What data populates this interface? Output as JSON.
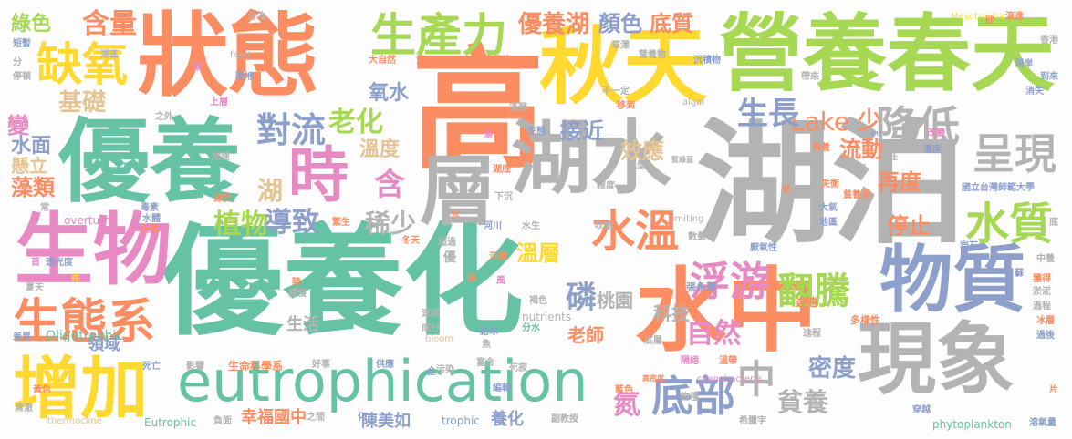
{
  "palette": {
    "teal": "#66c2a5",
    "orange": "#fc8d62",
    "blue": "#8da0cb",
    "pink": "#e78ac3",
    "green": "#a6d854",
    "yellow": "#ffd92f",
    "tan": "#e5c494",
    "gray": "#b3b3b3"
  },
  "words": [
    {
      "text": "湖泊",
      "color": "#b3b3b3",
      "orientation": "horizontal"
    },
    {
      "text": "優養化",
      "color": "#66c2a5",
      "orientation": "horizontal"
    },
    {
      "text": "高",
      "color": "#fc8d62",
      "orientation": "horizontal"
    },
    {
      "text": "狀態",
      "color": "#fc8d62",
      "orientation": "horizontal"
    },
    {
      "text": "營養春天",
      "color": "#a6d854",
      "orientation": "horizontal"
    },
    {
      "text": "秋天",
      "color": "#ffd92f",
      "orientation": "horizontal"
    },
    {
      "text": "優養",
      "color": "#66c2a5",
      "orientation": "horizontal"
    },
    {
      "text": "水中",
      "color": "#fc8d62",
      "orientation": "horizontal"
    },
    {
      "text": "湖水",
      "color": "#b3b3b3",
      "orientation": "horizontal"
    },
    {
      "text": "現象",
      "color": "#b3b3b3",
      "orientation": "horizontal"
    },
    {
      "text": "物質",
      "color": "#8da0cb",
      "orientation": "horizontal"
    },
    {
      "text": "生物",
      "color": "#e78ac3",
      "orientation": "horizontal"
    },
    {
      "text": "增加",
      "color": "#ffd92f",
      "orientation": "horizontal"
    },
    {
      "text": "eutrophication",
      "color": "#66c2a5",
      "orientation": "horizontal"
    },
    {
      "text": "層",
      "color": "#b3b3b3",
      "orientation": "horizontal"
    },
    {
      "text": "時",
      "color": "#e78ac3",
      "orientation": "horizontal"
    },
    {
      "text": "生態系",
      "color": "#fc8d62",
      "orientation": "horizontal"
    },
    {
      "text": "缺氧",
      "color": "#ffd92f",
      "orientation": "horizontal"
    },
    {
      "text": "生產力",
      "color": "#a6d854",
      "orientation": "horizontal"
    },
    {
      "text": "水溫",
      "color": "#fc8d62",
      "orientation": "horizontal"
    },
    {
      "text": "降低",
      "color": "#b3b3b3",
      "orientation": "horizontal"
    },
    {
      "text": "呈現",
      "color": "#b3b3b3",
      "orientation": "horizontal"
    },
    {
      "text": "水質",
      "color": "#a6d854",
      "orientation": "horizontal"
    },
    {
      "text": "底部",
      "color": "#8da0cb",
      "orientation": "horizontal"
    },
    {
      "text": "浮游",
      "color": "#e78ac3",
      "orientation": "horizontal"
    },
    {
      "text": "翻騰",
      "color": "#a6d854",
      "orientation": "horizontal"
    },
    {
      "text": "中",
      "color": "#b3b3b3",
      "orientation": "horizontal"
    },
    {
      "text": "對流",
      "color": "#8da0cb",
      "orientation": "horizontal"
    },
    {
      "text": "老化",
      "color": "#a6d854",
      "orientation": "horizontal"
    },
    {
      "text": "基礎",
      "color": "#e5c494",
      "orientation": "horizontal"
    },
    {
      "text": "含量",
      "color": "#fc8d62",
      "orientation": "horizontal"
    },
    {
      "text": "綠色",
      "color": "#a6d854",
      "orientation": "horizontal"
    },
    {
      "text": "優養湖",
      "color": "#fc8d62",
      "orientation": "horizontal"
    },
    {
      "text": "顏色",
      "color": "#8da0cb",
      "orientation": "horizontal"
    },
    {
      "text": "底質",
      "color": "#fc8d62",
      "orientation": "horizontal"
    },
    {
      "text": "Lake",
      "color": "#fc8d62",
      "orientation": "horizontal"
    },
    {
      "text": "生長",
      "color": "#8da0cb",
      "orientation": "horizontal"
    },
    {
      "text": "流動",
      "color": "#fc8d62",
      "orientation": "horizontal"
    },
    {
      "text": "少",
      "color": "#fc8d62",
      "orientation": "horizontal"
    },
    {
      "text": "接近",
      "color": "#8da0cb",
      "orientation": "horizontal"
    },
    {
      "text": "效應",
      "color": "#e5c494",
      "orientation": "horizontal"
    },
    {
      "text": "氧水",
      "color": "#8da0cb",
      "orientation": "horizontal"
    },
    {
      "text": "溫度",
      "color": "#e5c494",
      "orientation": "horizontal"
    },
    {
      "text": "湖",
      "color": "#e5c494",
      "orientation": "horizontal"
    },
    {
      "text": "含",
      "color": "#e78ac3",
      "orientation": "horizontal"
    },
    {
      "text": "稀少",
      "color": "#b3b3b3",
      "orientation": "horizontal"
    },
    {
      "text": "植物",
      "color": "#a6d854",
      "orientation": "horizontal"
    },
    {
      "text": "導致",
      "color": "#8da0cb",
      "orientation": "horizontal"
    },
    {
      "text": "變",
      "color": "#e78ac3",
      "orientation": "horizontal"
    },
    {
      "text": "水面",
      "color": "#8da0cb",
      "orientation": "horizontal"
    },
    {
      "text": "懸立",
      "color": "#e5c494",
      "orientation": "horizontal"
    },
    {
      "text": "藻類",
      "color": "#fc8d62",
      "orientation": "horizontal"
    },
    {
      "text": "磷",
      "color": "#8da0cb",
      "orientation": "horizontal"
    },
    {
      "text": "溫層",
      "color": "#ffd92f",
      "orientation": "horizontal"
    },
    {
      "text": "自然",
      "color": "#e78ac3",
      "orientation": "horizontal"
    },
    {
      "text": "桃園",
      "color": "#b3b3b3",
      "orientation": "horizontal"
    },
    {
      "text": "科技",
      "color": "#b3b3b3",
      "orientation": "horizontal"
    },
    {
      "text": "再度",
      "color": "#fc8d62",
      "orientation": "horizontal"
    },
    {
      "text": "停止",
      "color": "#fc8d62",
      "orientation": "horizontal"
    },
    {
      "text": "密度",
      "color": "#8da0cb",
      "orientation": "horizontal"
    },
    {
      "text": "貧養",
      "color": "#b3b3b3",
      "orientation": "horizontal"
    },
    {
      "text": "氮",
      "color": "#e78ac3",
      "orientation": "horizontal"
    },
    {
      "text": "養化",
      "color": "#8da0cb",
      "orientation": "horizontal"
    },
    {
      "text": "老師",
      "color": "#fc8d62",
      "orientation": "horizontal"
    },
    {
      "text": "生活",
      "color": "#b3b3b3",
      "orientation": "horizontal"
    },
    {
      "text": "領域",
      "color": "#8da0cb",
      "orientation": "horizontal"
    },
    {
      "text": "陳美如",
      "color": "#8da0cb",
      "orientation": "horizontal"
    },
    {
      "text": "幸福國中",
      "color": "#fc8d62",
      "orientation": "horizontal"
    },
    {
      "text": "生命科學系",
      "color": "#fc8d62",
      "orientation": "horizontal"
    },
    {
      "text": "Oligotrophic",
      "color": "#66c2a5",
      "orientation": "horizontal"
    },
    {
      "text": "Eutrophic",
      "color": "#66c2a5",
      "orientation": "horizontal"
    },
    {
      "text": "trophic",
      "color": "#8da0cb",
      "orientation": "horizontal"
    },
    {
      "text": "phytoplankton",
      "color": "#66c2a5",
      "orientation": "horizontal"
    },
    {
      "text": "cyanobacteria",
      "color": "#e78ac3",
      "orientation": "horizontal"
    },
    {
      "text": "nutrients",
      "color": "#b3b3b3",
      "orientation": "horizontal"
    },
    {
      "text": "overturn",
      "color": "#e78ac3",
      "orientation": "horizontal"
    },
    {
      "text": "limiting",
      "color": "#b3b3b3",
      "orientation": "horizontal"
    },
    {
      "text": "algal",
      "color": "#b3b3b3",
      "orientation": "horizontal"
    },
    {
      "text": "feed",
      "color": "#b3b3b3",
      "orientation": "horizontal"
    },
    {
      "text": "bloom",
      "color": "#e5c494",
      "orientation": "horizontal"
    },
    {
      "text": "thermocline",
      "color": "#e5c494",
      "orientation": "horizontal"
    },
    {
      "text": "Mesotrophic",
      "color": "#ffd92f",
      "orientation": "horizontal"
    },
    {
      "text": "eu",
      "color": "#8da0cb",
      "orientation": "horizontal"
    },
    {
      "text": "國立台灣師範大學",
      "color": "#8da0cb",
      "orientation": "horizontal"
    },
    {
      "text": "多樣性",
      "color": "#fc8d62",
      "orientation": "horizontal"
    },
    {
      "text": "張永達",
      "color": "#8da0cb",
      "orientation": "horizontal"
    },
    {
      "text": "遠遠",
      "color": "#fc8d62",
      "orientation": "horizontal"
    },
    {
      "text": "獲得",
      "color": "#fc8d62",
      "orientation": "horizontal"
    },
    {
      "text": "淤泥",
      "color": "#b3b3b3",
      "orientation": "horizontal"
    },
    {
      "text": "岩石",
      "color": "#8da0cb",
      "orientation": "horizontal"
    },
    {
      "text": "濃度",
      "color": "#8da0cb",
      "orientation": "horizontal"
    },
    {
      "text": "責任",
      "color": "#b3b3b3",
      "orientation": "horizontal"
    },
    {
      "text": "大氣",
      "color": "#8da0cb",
      "orientation": "horizontal"
    },
    {
      "text": "地區",
      "color": "#8da0cb",
      "orientation": "horizontal"
    },
    {
      "text": "厭氧性",
      "color": "#8da0cb",
      "orientation": "horizontal"
    },
    {
      "text": "物種",
      "color": "#b3b3b3",
      "orientation": "horizontal"
    },
    {
      "text": "溶氧量",
      "color": "#8da0cb",
      "orientation": "horizontal"
    },
    {
      "text": "希臘字",
      "color": "#b3b3b3",
      "orientation": "horizontal"
    },
    {
      "text": "副教授",
      "color": "#b3b3b3",
      "orientation": "horizontal"
    },
    {
      "text": "死寂",
      "color": "#b3b3b3",
      "orientation": "horizontal"
    },
    {
      "text": "編輯",
      "color": "#8da0cb",
      "orientation": "horizontal"
    },
    {
      "text": "污染",
      "color": "#b3b3b3",
      "orientation": "horizontal"
    },
    {
      "text": "好事",
      "color": "#b3b3b3",
      "orientation": "horizontal"
    },
    {
      "text": "影響",
      "color": "#b3b3b3",
      "orientation": "horizontal"
    },
    {
      "text": "死亡",
      "color": "#8da0cb",
      "orientation": "horizontal"
    },
    {
      "text": "負面",
      "color": "#b3b3b3",
      "orientation": "horizontal"
    },
    {
      "text": "清澈",
      "color": "#b3b3b3",
      "orientation": "horizontal"
    },
    {
      "text": "差異",
      "color": "#8da0cb",
      "orientation": "horizontal"
    },
    {
      "text": "緩慢",
      "color": "#b3b3b3",
      "orientation": "horizontal"
    },
    {
      "text": "透光度",
      "color": "#8da0cb",
      "orientation": "horizontal"
    },
    {
      "text": "毒素",
      "color": "#8da0cb",
      "orientation": "horizontal"
    },
    {
      "text": "天然",
      "color": "#fc8d62",
      "orientation": "horizontal"
    },
    {
      "text": "成分",
      "color": "#b3b3b3",
      "orientation": "horizontal"
    },
    {
      "text": "速度",
      "color": "#b3b3b3",
      "orientation": "horizontal"
    },
    {
      "text": "分水",
      "color": "#66c2a5",
      "orientation": "horizontal"
    },
    {
      "text": "超過",
      "color": "#b3b3b3",
      "orientation": "horizontal"
    },
    {
      "text": "河川",
      "color": "#8da0cb",
      "orientation": "horizontal"
    },
    {
      "text": "水生",
      "color": "#b3b3b3",
      "orientation": "horizontal"
    },
    {
      "text": "數量",
      "color": "#b3b3b3",
      "orientation": "horizontal"
    },
    {
      "text": "年",
      "color": "#b3b3b3",
      "orientation": "horizontal"
    },
    {
      "text": "吹動",
      "color": "#b3b3b3",
      "orientation": "horizontal"
    },
    {
      "text": "程度",
      "color": "#b3b3b3",
      "orientation": "horizontal"
    },
    {
      "text": "典型",
      "color": "#b3b3b3",
      "orientation": "horizontal"
    },
    {
      "text": "加速",
      "color": "#b3b3b3",
      "orientation": "horizontal"
    },
    {
      "text": "陸地",
      "color": "#8da0cb",
      "orientation": "horizontal"
    },
    {
      "text": "分為",
      "color": "#b3b3b3",
      "orientation": "horizontal"
    },
    {
      "text": "大自然",
      "color": "#fc8d62",
      "orientation": "horizontal"
    },
    {
      "text": "季節性",
      "color": "#fc8d62",
      "orientation": "horizontal"
    },
    {
      "text": "營養物",
      "color": "#b3b3b3",
      "orientation": "horizontal"
    },
    {
      "text": "沉積物",
      "color": "#8da0cb",
      "orientation": "horizontal"
    },
    {
      "text": "草澤",
      "color": "#b3b3b3",
      "orientation": "horizontal"
    },
    {
      "text": "演進",
      "color": "#fc8d62",
      "orientation": "horizontal"
    },
    {
      "text": "香港",
      "color": "#b3b3b3",
      "orientation": "horizontal"
    },
    {
      "text": "湖岸",
      "color": "#8da0cb",
      "orientation": "horizontal"
    },
    {
      "text": "帶來",
      "color": "#b3b3b3",
      "orientation": "horizontal"
    },
    {
      "text": "到來",
      "color": "#8da0cb",
      "orientation": "horizontal"
    },
    {
      "text": "消失",
      "color": "#8da0cb",
      "orientation": "horizontal"
    },
    {
      "text": "改變",
      "color": "#e78ac3",
      "orientation": "horizontal"
    },
    {
      "text": "失衡",
      "color": "#fc8d62",
      "orientation": "horizontal"
    },
    {
      "text": "貧養湖",
      "color": "#fc8d62",
      "orientation": "horizontal"
    },
    {
      "text": "高養",
      "color": "#fc8d62",
      "orientation": "horizontal"
    },
    {
      "text": "不一定",
      "color": "#b3b3b3",
      "orientation": "horizontal"
    },
    {
      "text": "移到",
      "color": "#fc8d62",
      "orientation": "horizontal"
    },
    {
      "text": "藻華",
      "color": "#b3b3b3",
      "orientation": "horizontal"
    },
    {
      "text": "上層",
      "color": "#e78ac3",
      "orientation": "horizontal"
    },
    {
      "text": "之外",
      "color": "#b3b3b3",
      "orientation": "horizontal"
    },
    {
      "text": "湖底",
      "color": "#fc8d62",
      "orientation": "horizontal"
    },
    {
      "text": "湖區",
      "color": "#b3b3b3",
      "orientation": "horizontal"
    },
    {
      "text": "短暫",
      "color": "#8da0cb",
      "orientation": "horizontal"
    },
    {
      "text": "停頓",
      "color": "#b3b3b3",
      "orientation": "horizontal"
    },
    {
      "text": "分",
      "color": "#b3b3b3",
      "orientation": "horizontal"
    },
    {
      "text": "夏天",
      "color": "#b3b3b3",
      "orientation": "horizontal"
    },
    {
      "text": "冬天",
      "color": "#fc8d62",
      "orientation": "horizontal"
    },
    {
      "text": "過程",
      "color": "#b3b3b3",
      "orientation": "horizontal"
    },
    {
      "text": "進程",
      "color": "#b3b3b3",
      "orientation": "horizontal"
    },
    {
      "text": "中養",
      "color": "#b3b3b3",
      "orientation": "horizontal"
    },
    {
      "text": "冰層",
      "color": "#fc8d62",
      "orientation": "horizontal"
    },
    {
      "text": "過後",
      "color": "#8da0cb",
      "orientation": "horizontal"
    },
    {
      "text": "黃色",
      "color": "#fc8d62",
      "orientation": "horizontal"
    },
    {
      "text": "藍色",
      "color": "#fc8d62",
      "orientation": "horizontal"
    },
    {
      "text": "褐色",
      "color": "#b3b3b3",
      "orientation": "horizontal"
    },
    {
      "text": "隔絕",
      "color": "#e78ac3",
      "orientation": "horizontal"
    },
    {
      "text": "溫帶",
      "color": "#fc8d62",
      "orientation": "horizontal"
    },
    {
      "text": "高密度",
      "color": "#fc8d62",
      "orientation": "horizontal"
    },
    {
      "text": "穿越",
      "color": "#8da0cb",
      "orientation": "horizontal"
    },
    {
      "text": "富含",
      "color": "#b3b3b3",
      "orientation": "horizontal"
    },
    {
      "text": "供應",
      "color": "#8da0cb",
      "orientation": "horizontal"
    },
    {
      "text": "結冰",
      "color": "#8da0cb",
      "orientation": "horizontal"
    },
    {
      "text": "沉積",
      "color": "#fc8d62",
      "orientation": "horizontal"
    },
    {
      "text": "下沉",
      "color": "#b3b3b3",
      "orientation": "horizontal"
    },
    {
      "text": "生態",
      "color": "#8da0cb",
      "orientation": "horizontal"
    },
    {
      "text": "藍綠菌",
      "color": "#b3b3b3",
      "orientation": "horizontal"
    },
    {
      "text": "源於",
      "color": "#fc8d62",
      "orientation": "horizontal"
    },
    {
      "text": "繁生",
      "color": "#fc8d62",
      "orientation": "horizontal"
    },
    {
      "text": "水體",
      "color": "#8da0cb",
      "orientation": "horizontal"
    },
    {
      "text": "之間",
      "color": "#b3b3b3",
      "orientation": "horizontal"
    },
    {
      "text": "化",
      "color": "#8da0cb",
      "orientation": "horizontal"
    },
    {
      "text": "全",
      "color": "#8da0cb",
      "orientation": "horizontal"
    },
    {
      "text": "魚",
      "color": "#b3b3b3",
      "orientation": "horizontal"
    },
    {
      "text": "優",
      "color": "#b3b3b3",
      "orientation": "horizontal"
    },
    {
      "text": "風",
      "color": "#e78ac3",
      "orientation": "horizontal"
    },
    {
      "text": "件",
      "color": "#ffd92f",
      "orientation": "horizontal"
    },
    {
      "text": "首",
      "color": "#e78ac3",
      "orientation": "horizontal"
    },
    {
      "text": "常",
      "color": "#b3b3b3",
      "orientation": "horizontal"
    },
    {
      "text": "深",
      "color": "#fc8d62",
      "orientation": "horizontal"
    },
    {
      "text": "低",
      "color": "#b3b3b3",
      "orientation": "horizontal"
    },
    {
      "text": "湛",
      "color": "#e78ac3",
      "orientation": "horizontal"
    },
    {
      "text": "砂",
      "color": "#fc8d62",
      "orientation": "horizontal"
    },
    {
      "text": "片",
      "color": "#fc8d62",
      "orientation": "horizontal"
    },
    {
      "text": "蘇",
      "color": "#8da0cb",
      "orientation": "horizontal"
    },
    {
      "text": "差",
      "color": "#b3b3b3",
      "orientation": "horizontal"
    },
    {
      "text": "底",
      "color": "#b3b3b3",
      "orientation": "horizontal"
    },
    {
      "text": "陸",
      "color": "#fc8d62",
      "orientation": "horizontal"
    },
    {
      "text": "沉",
      "color": "#fc8d62",
      "orientation": "horizontal"
    },
    {
      "text": "水",
      "color": "#fc8d62",
      "orientation": "horizontal"
    },
    {
      "text": "察",
      "color": "#e78ac3",
      "orientation": "horizontal"
    },
    {
      "text": "底層",
      "color": "#b3b3b3",
      "orientation": "horizontal"
    },
    {
      "text": "漠",
      "color": "#fc8d62",
      "orientation": "horizontal"
    }
  ]
}
